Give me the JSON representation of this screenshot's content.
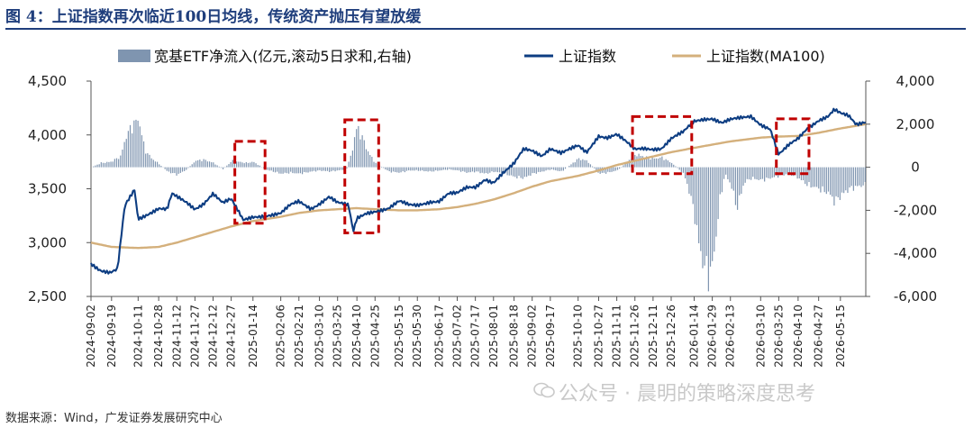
{
  "figure": {
    "title": "图 4：上证指数再次临近100日均线，传统资产抛压有望放缓",
    "source": "数据来源：Wind，广发证券发展研究中心",
    "watermark": "公众号 · 晨明的策略深度思考",
    "watermark_icon": "wechat-logo-icon"
  },
  "chart_data": {
    "type": "line",
    "xlabel": "",
    "ylabel": "",
    "ylim_left": [
      2500,
      4500
    ],
    "ylim_right": [
      -6000,
      4000
    ],
    "left_ticks": [
      "2,500",
      "3,000",
      "3,500",
      "4,000",
      "4,500"
    ],
    "left_tick_values": [
      2500,
      3000,
      3500,
      4000,
      4500
    ],
    "right_ticks": [
      "-6,000",
      "-4,000",
      "-2,000",
      "0",
      "2,000",
      "4,000"
    ],
    "right_tick_values": [
      -6000,
      -4000,
      -2000,
      0,
      2000,
      4000
    ],
    "x_start": "2024-09-02",
    "x_end": "2026-06-05",
    "x_ticks": [
      "2024-09-02",
      "2024-09-19",
      "2024-10-11",
      "2024-10-28",
      "2024-11-12",
      "2024-11-27",
      "2024-12-12",
      "2024-12-27",
      "2025-01-14",
      "2025-02-06",
      "2025-02-21",
      "2025-03-10",
      "2025-03-25",
      "2025-04-10",
      "2025-04-25",
      "2025-05-15",
      "2025-05-30",
      "2025-06-17",
      "2025-07-02",
      "2025-07-17",
      "2025-08-01",
      "2025-08-18",
      "2025-09-02",
      "2025-09-17",
      "2025-10-10",
      "2025-10-27",
      "2025-11-11",
      "2025-11-26",
      "2025-12-11",
      "2025-12-26",
      "2026-01-14",
      "2026-01-29",
      "2026-02-13",
      "2026-03-10",
      "2026-03-25",
      "2026-04-10",
      "2026-04-27",
      "2026-05-15"
    ],
    "grid": false,
    "legend_position": "top",
    "colors": {
      "etf": "#7f95b0",
      "index": "#0d3d82",
      "ma100": "#d4b07c",
      "box": "#c00000"
    },
    "series": [
      {
        "name": "宽基ETF净流入(亿元,滚动5日求和,右轴)",
        "kind": "bar",
        "axis": "right",
        "points": [
          [
            "2024-09-02",
            0
          ],
          [
            "2024-09-10",
            200
          ],
          [
            "2024-09-18",
            250
          ],
          [
            "2024-09-26",
            500
          ],
          [
            "2024-10-01",
            1500
          ],
          [
            "2024-10-08",
            2100
          ],
          [
            "2024-10-10",
            2200
          ],
          [
            "2024-10-12",
            2000
          ],
          [
            "2024-10-16",
            800
          ],
          [
            "2024-10-22",
            400
          ],
          [
            "2024-10-28",
            150
          ],
          [
            "2024-11-04",
            -200
          ],
          [
            "2024-11-12",
            -350
          ],
          [
            "2024-11-20",
            -100
          ],
          [
            "2024-11-27",
            300
          ],
          [
            "2024-12-04",
            350
          ],
          [
            "2024-12-12",
            200
          ],
          [
            "2024-12-20",
            -100
          ],
          [
            "2024-12-27",
            300
          ],
          [
            "2025-01-08",
            200
          ],
          [
            "2025-01-14",
            250
          ],
          [
            "2025-01-24",
            -100
          ],
          [
            "2025-02-06",
            -300
          ],
          [
            "2025-02-14",
            -250
          ],
          [
            "2025-02-21",
            -300
          ],
          [
            "2025-03-03",
            -200
          ],
          [
            "2025-03-10",
            -150
          ],
          [
            "2025-03-18",
            -200
          ],
          [
            "2025-03-25",
            -150
          ],
          [
            "2025-04-01",
            -100
          ],
          [
            "2025-04-07",
            1000
          ],
          [
            "2025-04-08",
            1700
          ],
          [
            "2025-04-10",
            1800
          ],
          [
            "2025-04-14",
            1400
          ],
          [
            "2025-04-18",
            800
          ],
          [
            "2025-04-24",
            250
          ],
          [
            "2025-05-06",
            -200
          ],
          [
            "2025-05-15",
            -250
          ],
          [
            "2025-05-23",
            -150
          ],
          [
            "2025-05-30",
            -150
          ],
          [
            "2025-06-09",
            -200
          ],
          [
            "2025-06-17",
            -150
          ],
          [
            "2025-06-25",
            -100
          ],
          [
            "2025-07-02",
            -150
          ],
          [
            "2025-07-10",
            -250
          ],
          [
            "2025-07-17",
            -200
          ],
          [
            "2025-07-25",
            -300
          ],
          [
            "2025-08-01",
            -200
          ],
          [
            "2025-08-10",
            -300
          ],
          [
            "2025-08-18",
            -450
          ],
          [
            "2025-08-26",
            -500
          ],
          [
            "2025-09-02",
            -300
          ],
          [
            "2025-09-10",
            -200
          ],
          [
            "2025-09-17",
            -100
          ],
          [
            "2025-09-26",
            -200
          ],
          [
            "2025-10-10",
            400
          ],
          [
            "2025-10-17",
            300
          ],
          [
            "2025-10-27",
            -300
          ],
          [
            "2025-11-03",
            -250
          ],
          [
            "2025-11-11",
            -150
          ],
          [
            "2025-11-18",
            200
          ],
          [
            "2025-11-26",
            600
          ],
          [
            "2025-12-03",
            500
          ],
          [
            "2025-12-11",
            400
          ],
          [
            "2025-12-18",
            450
          ],
          [
            "2025-12-26",
            200
          ],
          [
            "2026-01-05",
            -300
          ],
          [
            "2026-01-10",
            -1200
          ],
          [
            "2026-01-14",
            -2200
          ],
          [
            "2026-01-18",
            -3800
          ],
          [
            "2026-01-22",
            -4600
          ],
          [
            "2026-01-26",
            -5000
          ],
          [
            "2026-01-29",
            -4500
          ],
          [
            "2026-02-04",
            -1500
          ],
          [
            "2026-02-08",
            -300
          ],
          [
            "2026-02-13",
            -800
          ],
          [
            "2026-02-18",
            -1900
          ],
          [
            "2026-02-24",
            -700
          ],
          [
            "2026-03-02",
            -500
          ],
          [
            "2026-03-10",
            -600
          ],
          [
            "2026-03-18",
            -500
          ],
          [
            "2026-03-25",
            -400
          ],
          [
            "2026-04-02",
            -300
          ],
          [
            "2026-04-10",
            -500
          ],
          [
            "2026-04-17",
            -800
          ],
          [
            "2026-04-27",
            -1000
          ],
          [
            "2026-05-05",
            -1200
          ],
          [
            "2026-05-10",
            -1600
          ],
          [
            "2026-05-15",
            -1300
          ],
          [
            "2026-05-22",
            -1000
          ],
          [
            "2026-05-28",
            -900
          ],
          [
            "2026-06-05",
            -800
          ]
        ]
      },
      {
        "name": "上证指数",
        "kind": "line",
        "axis": "left",
        "points": [
          [
            "2024-09-02",
            2811
          ],
          [
            "2024-09-10",
            2745
          ],
          [
            "2024-09-18",
            2720
          ],
          [
            "2024-09-24",
            2750
          ],
          [
            "2024-09-27",
            3050
          ],
          [
            "2024-09-30",
            3336
          ],
          [
            "2024-10-08",
            3489
          ],
          [
            "2024-10-11",
            3217
          ],
          [
            "2024-10-18",
            3261
          ],
          [
            "2024-10-28",
            3322
          ],
          [
            "2024-11-04",
            3310
          ],
          [
            "2024-11-08",
            3452
          ],
          [
            "2024-11-12",
            3421
          ],
          [
            "2024-11-20",
            3367
          ],
          [
            "2024-11-27",
            3310
          ],
          [
            "2024-12-04",
            3364
          ],
          [
            "2024-12-12",
            3462
          ],
          [
            "2024-12-20",
            3370
          ],
          [
            "2024-12-27",
            3400
          ],
          [
            "2025-01-06",
            3206
          ],
          [
            "2025-01-14",
            3240
          ],
          [
            "2025-01-24",
            3252
          ],
          [
            "2025-02-06",
            3270
          ],
          [
            "2025-02-14",
            3346
          ],
          [
            "2025-02-21",
            3379
          ],
          [
            "2025-03-03",
            3316
          ],
          [
            "2025-03-10",
            3366
          ],
          [
            "2025-03-18",
            3430
          ],
          [
            "2025-03-25",
            3370
          ],
          [
            "2025-04-03",
            3342
          ],
          [
            "2025-04-07",
            3096
          ],
          [
            "2025-04-10",
            3223
          ],
          [
            "2025-04-18",
            3277
          ],
          [
            "2025-04-25",
            3295
          ],
          [
            "2025-05-06",
            3316
          ],
          [
            "2025-05-15",
            3380
          ],
          [
            "2025-05-23",
            3348
          ],
          [
            "2025-05-30",
            3347
          ],
          [
            "2025-06-10",
            3384
          ],
          [
            "2025-06-17",
            3387
          ],
          [
            "2025-06-25",
            3455
          ],
          [
            "2025-07-02",
            3454
          ],
          [
            "2025-07-10",
            3509
          ],
          [
            "2025-07-17",
            3516
          ],
          [
            "2025-07-25",
            3593
          ],
          [
            "2025-08-01",
            3560
          ],
          [
            "2025-08-08",
            3635
          ],
          [
            "2025-08-18",
            3728
          ],
          [
            "2025-08-26",
            3868
          ],
          [
            "2025-09-02",
            3858
          ],
          [
            "2025-09-10",
            3812
          ],
          [
            "2025-09-17",
            3876
          ],
          [
            "2025-09-26",
            3828
          ],
          [
            "2025-10-10",
            3897
          ],
          [
            "2025-10-17",
            3839
          ],
          [
            "2025-10-27",
            3996
          ],
          [
            "2025-11-03",
            3976
          ],
          [
            "2025-11-11",
            4002
          ],
          [
            "2025-11-18",
            3939
          ],
          [
            "2025-11-26",
            3864
          ],
          [
            "2025-12-03",
            3878
          ],
          [
            "2025-12-11",
            3873
          ],
          [
            "2025-12-18",
            3876
          ],
          [
            "2025-12-26",
            3963
          ],
          [
            "2026-01-05",
            4023
          ],
          [
            "2026-01-14",
            4126
          ],
          [
            "2026-01-22",
            4150
          ],
          [
            "2026-01-29",
            4157
          ],
          [
            "2026-02-06",
            4115
          ],
          [
            "2026-02-13",
            4140
          ],
          [
            "2026-02-24",
            4157
          ],
          [
            "2026-03-02",
            4170
          ],
          [
            "2026-03-10",
            4100
          ],
          [
            "2026-03-18",
            4060
          ],
          [
            "2026-03-25",
            3820
          ],
          [
            "2026-04-02",
            3900
          ],
          [
            "2026-04-10",
            3960
          ],
          [
            "2026-04-17",
            4050
          ],
          [
            "2026-04-27",
            4140
          ],
          [
            "2026-05-05",
            4180
          ],
          [
            "2026-05-10",
            4240
          ],
          [
            "2026-05-15",
            4200
          ],
          [
            "2026-05-22",
            4170
          ],
          [
            "2026-05-28",
            4090
          ],
          [
            "2026-06-05",
            4120
          ]
        ]
      },
      {
        "name": "上证指数(MA100)",
        "kind": "line",
        "axis": "left",
        "points": [
          [
            "2024-09-02",
            3000
          ],
          [
            "2024-09-19",
            2960
          ],
          [
            "2024-10-11",
            2950
          ],
          [
            "2024-10-28",
            2960
          ],
          [
            "2024-11-12",
            3000
          ],
          [
            "2024-11-27",
            3050
          ],
          [
            "2024-12-12",
            3100
          ],
          [
            "2024-12-27",
            3150
          ],
          [
            "2025-01-14",
            3200
          ],
          [
            "2025-02-06",
            3240
          ],
          [
            "2025-02-21",
            3275
          ],
          [
            "2025-03-10",
            3300
          ],
          [
            "2025-03-25",
            3310
          ],
          [
            "2025-04-10",
            3320
          ],
          [
            "2025-04-25",
            3310
          ],
          [
            "2025-05-15",
            3300
          ],
          [
            "2025-05-30",
            3300
          ],
          [
            "2025-06-17",
            3310
          ],
          [
            "2025-07-02",
            3330
          ],
          [
            "2025-07-17",
            3360
          ],
          [
            "2025-08-01",
            3400
          ],
          [
            "2025-08-18",
            3460
          ],
          [
            "2025-09-02",
            3520
          ],
          [
            "2025-09-17",
            3570
          ],
          [
            "2025-10-10",
            3620
          ],
          [
            "2025-10-27",
            3670
          ],
          [
            "2025-11-11",
            3720
          ],
          [
            "2025-11-26",
            3760
          ],
          [
            "2025-12-11",
            3800
          ],
          [
            "2025-12-26",
            3840
          ],
          [
            "2026-01-14",
            3880
          ],
          [
            "2026-01-29",
            3910
          ],
          [
            "2026-02-13",
            3940
          ],
          [
            "2026-03-10",
            3975
          ],
          [
            "2026-03-25",
            3985
          ],
          [
            "2026-04-10",
            3990
          ],
          [
            "2026-04-27",
            4020
          ],
          [
            "2026-05-15",
            4060
          ],
          [
            "2026-06-05",
            4100
          ]
        ]
      }
    ],
    "highlight_boxes": [
      {
        "x": [
          "2024-12-30",
          "2025-01-24"
        ],
        "y_left": [
          3180,
          3940
        ]
      },
      {
        "x": [
          "2025-03-31",
          "2025-04-28"
        ],
        "y_left": [
          3090,
          4140
        ]
      },
      {
        "x": [
          "2025-11-24",
          "2026-01-12"
        ],
        "y_left": [
          3640,
          4170
        ]
      },
      {
        "x": [
          "2026-03-23",
          "2026-04-19"
        ],
        "y_left": [
          3640,
          4150
        ]
      }
    ]
  }
}
